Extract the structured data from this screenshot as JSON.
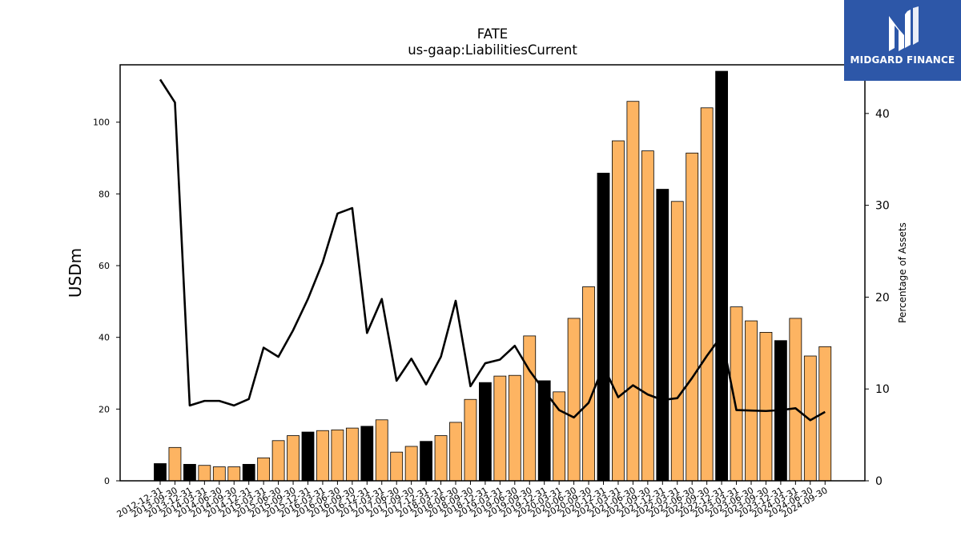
{
  "logo": {
    "text": "MIDGARD FINANCE",
    "icon": "midgard-finance-logo-icon",
    "color": "#2d57a8"
  },
  "chart_data": {
    "type": "bar",
    "title": "FATE",
    "subtitle": "us-gaap:LiabilitiesCurrent",
    "ylabel": "USDm",
    "y2label": "Percentage of Assets",
    "ylim": [
      0,
      116
    ],
    "y2lim": [
      0,
      45.3
    ],
    "yticks": [
      0,
      20,
      40,
      60,
      80,
      100
    ],
    "y2ticks": [
      0,
      10,
      20,
      30,
      40
    ],
    "grid": false,
    "colors": {
      "annual": "#000000",
      "quarter": "#fdb462",
      "line": "#000000"
    },
    "categories": [
      "2012-12-31",
      "2013-09-30",
      "2013-12-31",
      "2014-03-31",
      "2014-06-30",
      "2014-09-30",
      "2014-12-31",
      "2015-03-31",
      "2015-06-30",
      "2015-09-30",
      "2015-12-31",
      "2016-03-31",
      "2016-06-30",
      "2016-09-30",
      "2016-12-31",
      "2017-03-31",
      "2017-06-30",
      "2017-09-30",
      "2017-12-31",
      "2018-03-31",
      "2018-06-30",
      "2018-09-30",
      "2018-12-31",
      "2019-03-31",
      "2019-06-30",
      "2019-09-30",
      "2019-12-31",
      "2020-03-31",
      "2020-06-30",
      "2020-09-30",
      "2020-12-31",
      "2021-03-31",
      "2021-06-30",
      "2021-09-30",
      "2021-12-31",
      "2022-03-31",
      "2022-06-30",
      "2022-09-30",
      "2022-12-31",
      "2023-03-31",
      "2023-06-30",
      "2023-09-30",
      "2023-12-31",
      "2024-03-31",
      "2024-06-30",
      "2024-09-30"
    ],
    "series": [
      {
        "kind": "bar",
        "values": [
          4.8,
          9.3,
          4.6,
          4.3,
          3.9,
          3.9,
          4.6,
          6.4,
          11.2,
          12.6,
          13.6,
          14.0,
          14.2,
          14.7,
          15.2,
          17.0,
          8.0,
          9.6,
          11.0,
          12.6,
          16.3,
          22.7,
          27.4,
          29.2,
          29.4,
          40.4,
          27.9,
          24.8,
          45.3,
          54.1,
          85.8,
          94.8,
          105.8,
          92.0,
          81.3,
          77.9,
          91.4,
          104.0,
          114.2,
          48.5,
          44.6,
          41.4,
          39.1,
          45.3,
          34.8,
          37.4
        ],
        "annual": [
          true,
          false,
          true,
          false,
          false,
          false,
          true,
          false,
          false,
          false,
          true,
          false,
          false,
          false,
          true,
          false,
          false,
          false,
          true,
          false,
          false,
          false,
          true,
          false,
          false,
          false,
          true,
          false,
          false,
          false,
          true,
          false,
          false,
          false,
          true,
          false,
          false,
          false,
          true,
          false,
          false,
          false,
          true,
          false,
          false,
          false
        ]
      },
      {
        "kind": "line",
        "axis": "right",
        "values": [
          43.7,
          41.2,
          8.2,
          8.7,
          8.7,
          8.2,
          8.9,
          14.5,
          13.5,
          16.4,
          19.8,
          23.8,
          29.1,
          29.7,
          16.1,
          19.8,
          10.9,
          13.3,
          10.5,
          13.5,
          19.6,
          10.3,
          12.8,
          13.2,
          14.7,
          12.0,
          9.8,
          7.7,
          6.9,
          8.5,
          12.5,
          9.1,
          10.4,
          9.4,
          8.8,
          9.0,
          11.2,
          13.6,
          15.8,
          7.7,
          7.65,
          7.6,
          7.7,
          7.9,
          6.6,
          7.5
        ]
      }
    ]
  }
}
